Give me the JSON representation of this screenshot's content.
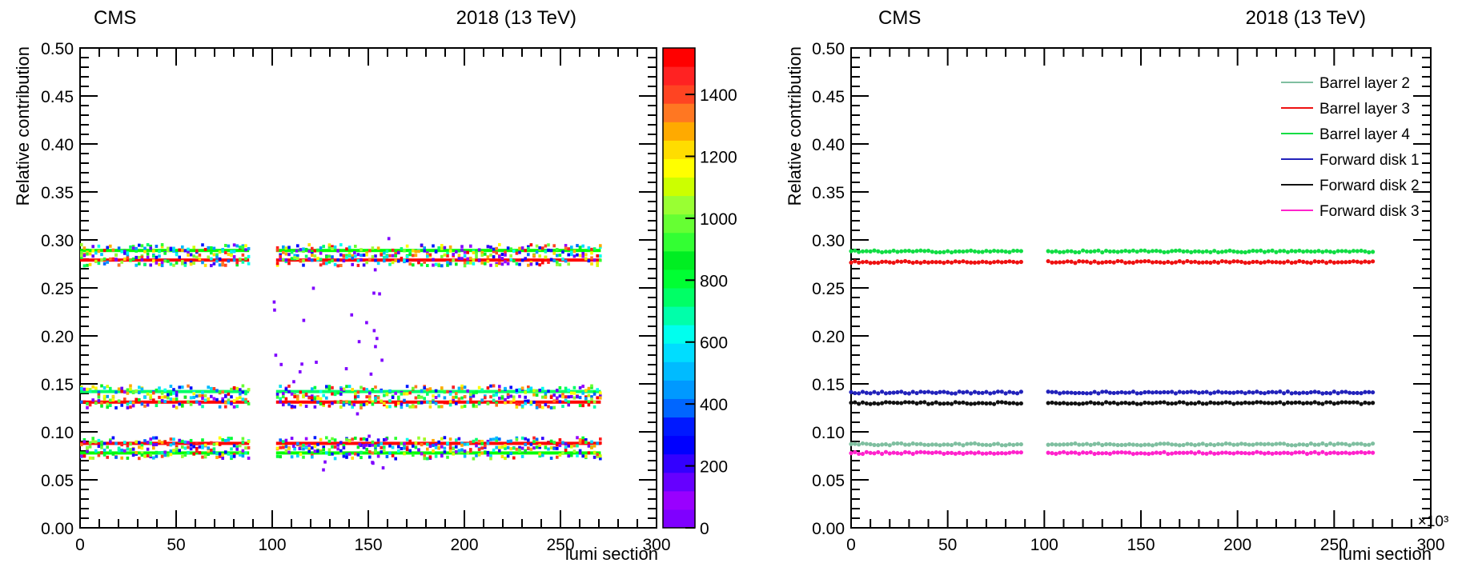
{
  "chart_data": [
    {
      "type": "heatmap",
      "header_left": "CMS",
      "header_right": "2018 (13 TeV)",
      "xlabel": "lumi section",
      "ylabel": "Relative contribution",
      "xlim": [
        0,
        300
      ],
      "ylim": [
        0,
        0.5
      ],
      "x_ticks": [
        "0",
        "50",
        "100",
        "150",
        "200",
        "250",
        "300"
      ],
      "y_ticks": [
        "0.00",
        "0.05",
        "0.10",
        "0.15",
        "0.20",
        "0.25",
        "0.30",
        "0.35",
        "0.40",
        "0.45",
        "0.50"
      ],
      "colorbar": {
        "range": [
          0,
          1550
        ],
        "ticks": [
          "0",
          "200",
          "400",
          "600",
          "800",
          "1000",
          "1200",
          "1400"
        ],
        "colors": [
          "#7f00ff",
          "#9900ff",
          "#6600ff",
          "#3300ff",
          "#0000ff",
          "#0019ff",
          "#0066ff",
          "#0099ff",
          "#00bbff",
          "#00ddff",
          "#00ffee",
          "#00ffaa",
          "#00ff66",
          "#00ff33",
          "#00ee22",
          "#33ff33",
          "#66ff33",
          "#99ff33",
          "#ccff00",
          "#ffff00",
          "#ffdd00",
          "#ffaa00",
          "#ff7722",
          "#ff4422",
          "#ff2222",
          "#ff0000"
        ]
      },
      "x_ranges": [
        [
          0,
          88
        ],
        [
          102,
          271
        ]
      ],
      "bands": [
        {
          "y": 0.289,
          "color": "#00ff00"
        },
        {
          "y": 0.279,
          "color": "#ff0000"
        },
        {
          "y": 0.142,
          "color": "#00ff66"
        },
        {
          "y": 0.131,
          "color": "#ff0000"
        },
        {
          "y": 0.088,
          "color": "#ff0000"
        },
        {
          "y": 0.078,
          "color": "#00ff00"
        }
      ]
    },
    {
      "type": "scatter",
      "header_left": "CMS",
      "header_right": "2018 (13 TeV)",
      "xlabel": "lumi section",
      "ylabel": "Relative contribution",
      "x_multiplier": "×10³",
      "xlim": [
        0,
        300
      ],
      "ylim": [
        0,
        0.5
      ],
      "x_ticks": [
        "0",
        "50",
        "100",
        "150",
        "200",
        "250",
        "300"
      ],
      "y_ticks": [
        "0.00",
        "0.05",
        "0.10",
        "0.15",
        "0.20",
        "0.25",
        "0.30",
        "0.35",
        "0.40",
        "0.45",
        "0.50"
      ],
      "x_ranges": [
        [
          0,
          88
        ],
        [
          102,
          271
        ]
      ],
      "legend_position": "top-right",
      "series": [
        {
          "name": "Barrel layer 2",
          "color": "#7fbfa0",
          "y": 0.087
        },
        {
          "name": "Barrel layer 3",
          "color": "#ee1111",
          "y": 0.277
        },
        {
          "name": "Barrel layer 4",
          "color": "#11dd44",
          "y": 0.288
        },
        {
          "name": "Forward disk 1",
          "color": "#2222bb",
          "y": 0.141
        },
        {
          "name": "Forward disk 2",
          "color": "#111111",
          "y": 0.13
        },
        {
          "name": "Forward disk 3",
          "color": "#ff22cc",
          "y": 0.078
        }
      ]
    }
  ]
}
